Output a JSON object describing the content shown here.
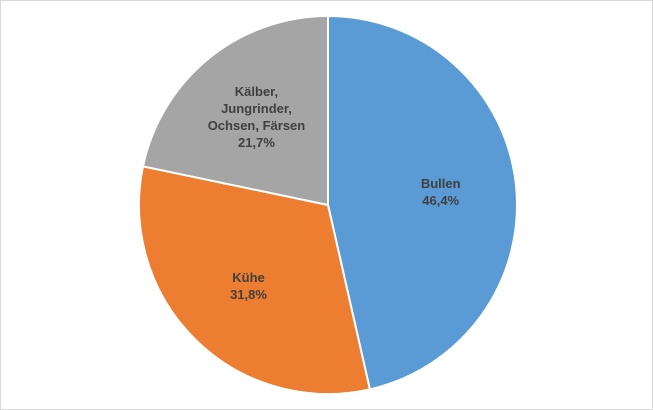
{
  "chart_data": {
    "type": "pie",
    "categories": [
      "Bullen",
      "Kühe",
      "Kälber, Jungrinder, Ochsen, Färsen"
    ],
    "values": [
      46.4,
      31.8,
      21.7
    ],
    "value_labels": [
      "46,4%",
      "31,8%",
      "21,7%"
    ],
    "colors": [
      "#5b9bd5",
      "#ed7d31",
      "#a5a5a5"
    ]
  }
}
